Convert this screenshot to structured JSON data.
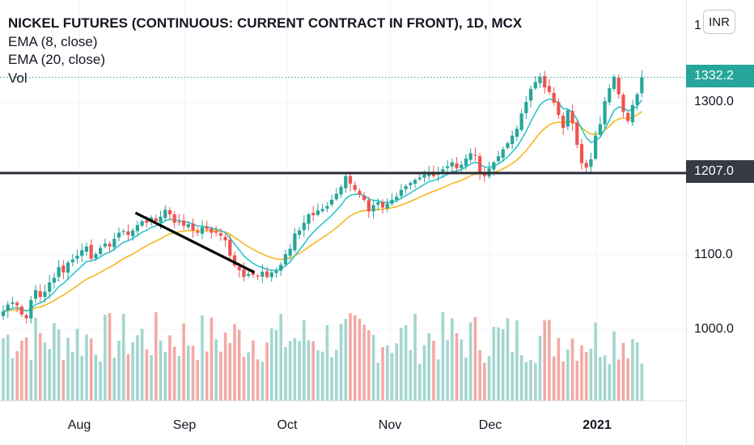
{
  "legend": {
    "title": "NICKEL FUTURES (CONTINUOUS: CURRENT CONTRACT IN FRONT), 1D, MCX",
    "ema8": "EMA (8, close)",
    "ema20": "EMA (20, close)",
    "vol": "Vol"
  },
  "currency_button": "INR",
  "price_axis": {
    "labels": [
      "1",
      "1300.0",
      "1100.0",
      "1000.0"
    ],
    "last_price_tag": "1332.2",
    "level_tag": "1207.0"
  },
  "time_axis": {
    "labels": [
      "Aug",
      "Sep",
      "Oct",
      "Nov",
      "Dec",
      "2021"
    ]
  },
  "colors": {
    "up": "#26a69a",
    "down": "#ef5350",
    "ema8": "#2ec4cc",
    "ema20": "#f5b71f",
    "volume_up": "#a3d6cf",
    "volume_down": "#f3a9a5",
    "horizontal_level": "#2a2e39",
    "trendline": "#000000"
  },
  "chart_data": {
    "type": "candlestick",
    "symbol": "NICKEL FUTURES (CONTINUOUS: CURRENT CONTRACT IN FRONT)",
    "interval": "1D",
    "exchange": "MCX",
    "currency": "INR",
    "y_range": [
      920,
      1395
    ],
    "last_price": 1332.2,
    "horizontal_level": 1207.0,
    "trendline": {
      "start": {
        "date": "2020-08-31",
        "price": 1155
      },
      "end": {
        "date": "2020-10-06",
        "price": 1077
      }
    },
    "indicators": [
      "EMA (8, close)",
      "EMA (20, close)",
      "Vol"
    ],
    "closes": [
      1026,
      1035,
      1038,
      1034,
      1022,
      1017,
      1041,
      1054,
      1045,
      1052,
      1064,
      1070,
      1084,
      1077,
      1090,
      1094,
      1099,
      1106,
      1111,
      1095,
      1101,
      1109,
      1115,
      1111,
      1121,
      1129,
      1131,
      1126,
      1132,
      1139,
      1144,
      1142,
      1149,
      1144,
      1150,
      1159,
      1153,
      1142,
      1143,
      1138,
      1140,
      1132,
      1129,
      1136,
      1134,
      1129,
      1129,
      1125,
      1119,
      1099,
      1086,
      1080,
      1071,
      1075,
      1074,
      1072,
      1078,
      1071,
      1077,
      1079,
      1087,
      1101,
      1108,
      1128,
      1132,
      1142,
      1153,
      1152,
      1158,
      1160,
      1164,
      1172,
      1180,
      1189,
      1203,
      1193,
      1185,
      1179,
      1172,
      1157,
      1165,
      1169,
      1162,
      1167,
      1172,
      1176,
      1185,
      1190,
      1194,
      1198,
      1201,
      1205,
      1208,
      1203,
      1207,
      1212,
      1216,
      1221,
      1213,
      1218,
      1226,
      1233,
      1230,
      1208,
      1203,
      1213,
      1221,
      1229,
      1238,
      1246,
      1256,
      1265,
      1285,
      1300,
      1317,
      1326,
      1333,
      1319,
      1313,
      1299,
      1283,
      1266,
      1289,
      1272,
      1244,
      1220,
      1214,
      1225,
      1256,
      1271,
      1301,
      1318,
      1333,
      1310,
      1287,
      1275,
      1296,
      1310,
      1332.2
    ]
  }
}
